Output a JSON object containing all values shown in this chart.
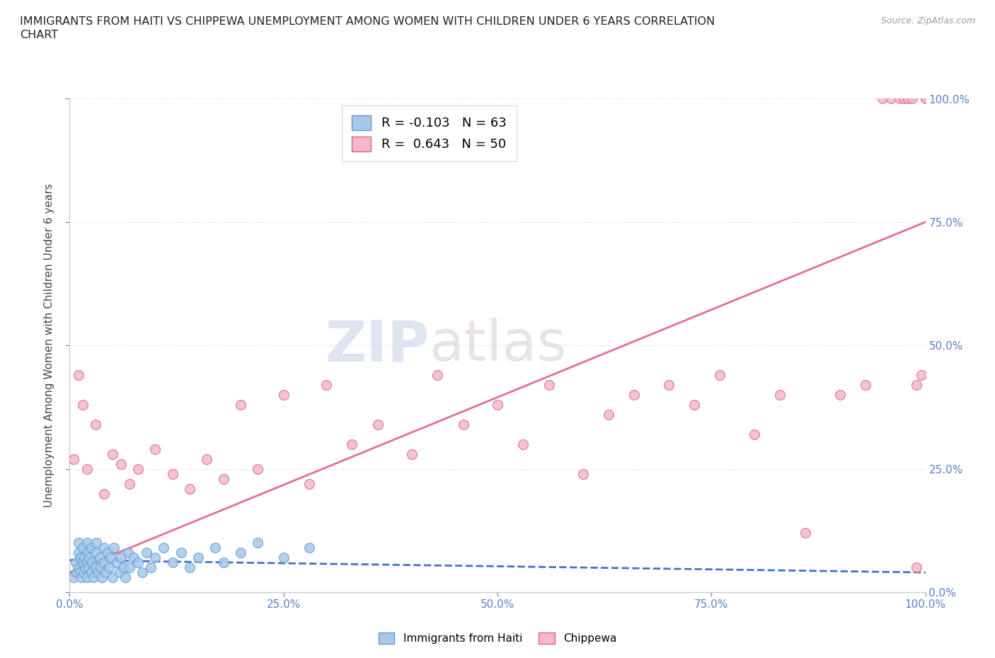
{
  "title_line1": "IMMIGRANTS FROM HAITI VS CHIPPEWA UNEMPLOYMENT AMONG WOMEN WITH CHILDREN UNDER 6 YEARS CORRELATION",
  "title_line2": "CHART",
  "source": "Source: ZipAtlas.com",
  "ylabel": "Unemployment Among Women with Children Under 6 years",
  "ytick_labels": [
    "0.0%",
    "25.0%",
    "50.0%",
    "75.0%",
    "100.0%"
  ],
  "ytick_values": [
    0,
    0.25,
    0.5,
    0.75,
    1.0
  ],
  "xtick_values": [
    0,
    0.25,
    0.5,
    0.75,
    1.0
  ],
  "xtick_labels": [
    "0.0%",
    "25.0%",
    "50.0%",
    "75.0%",
    "100.0%"
  ],
  "legend_haiti": "Immigrants from Haiti",
  "legend_chippewa": "Chippewa",
  "haiti_R": -0.103,
  "haiti_N": 63,
  "chippewa_R": 0.643,
  "chippewa_N": 50,
  "haiti_color": "#a8c8e8",
  "chippewa_color": "#f4b8c8",
  "haiti_edge_color": "#5b9bd5",
  "chippewa_edge_color": "#e06080",
  "haiti_line_color": "#4472c4",
  "chippewa_line_color": "#e07090",
  "watermark_color": "#dde4f0",
  "axis_color": "#cccccc",
  "tick_color": "#5b7fc5",
  "grid_color": "#e8e8e8",
  "background_color": "#ffffff",
  "haiti_scatter_x": [
    0.005,
    0.007,
    0.008,
    0.01,
    0.01,
    0.01,
    0.012,
    0.013,
    0.014,
    0.015,
    0.015,
    0.016,
    0.017,
    0.018,
    0.02,
    0.02,
    0.02,
    0.021,
    0.022,
    0.023,
    0.025,
    0.025,
    0.026,
    0.028,
    0.03,
    0.03,
    0.031,
    0.033,
    0.035,
    0.036,
    0.038,
    0.04,
    0.04,
    0.042,
    0.044,
    0.046,
    0.048,
    0.05,
    0.052,
    0.055,
    0.058,
    0.06,
    0.063,
    0.065,
    0.068,
    0.07,
    0.075,
    0.08,
    0.085,
    0.09,
    0.095,
    0.1,
    0.11,
    0.12,
    0.13,
    0.14,
    0.15,
    0.17,
    0.18,
    0.2,
    0.22,
    0.25,
    0.28
  ],
  "haiti_scatter_y": [
    0.03,
    0.06,
    0.04,
    0.08,
    0.05,
    0.1,
    0.04,
    0.07,
    0.03,
    0.09,
    0.06,
    0.04,
    0.07,
    0.05,
    0.1,
    0.06,
    0.03,
    0.08,
    0.05,
    0.07,
    0.04,
    0.09,
    0.06,
    0.03,
    0.08,
    0.05,
    0.1,
    0.04,
    0.07,
    0.05,
    0.03,
    0.09,
    0.06,
    0.04,
    0.08,
    0.05,
    0.07,
    0.03,
    0.09,
    0.06,
    0.04,
    0.07,
    0.05,
    0.03,
    0.08,
    0.05,
    0.07,
    0.06,
    0.04,
    0.08,
    0.05,
    0.07,
    0.09,
    0.06,
    0.08,
    0.05,
    0.07,
    0.09,
    0.06,
    0.08,
    0.1,
    0.07,
    0.09
  ],
  "chippewa_scatter_x": [
    0.005,
    0.01,
    0.015,
    0.02,
    0.03,
    0.04,
    0.05,
    0.06,
    0.07,
    0.08,
    0.1,
    0.12,
    0.14,
    0.16,
    0.18,
    0.2,
    0.22,
    0.25,
    0.28,
    0.3,
    0.33,
    0.36,
    0.4,
    0.43,
    0.46,
    0.5,
    0.53,
    0.56,
    0.6,
    0.63,
    0.66,
    0.7,
    0.73,
    0.76,
    0.8,
    0.83,
    0.86,
    0.9,
    0.93,
    0.95,
    0.96,
    0.97,
    0.975,
    0.98,
    0.985,
    0.99,
    0.995,
    1.0,
    1.0,
    0.99
  ],
  "chippewa_scatter_y": [
    0.27,
    0.44,
    0.38,
    0.25,
    0.34,
    0.2,
    0.28,
    0.26,
    0.22,
    0.25,
    0.29,
    0.24,
    0.21,
    0.27,
    0.23,
    0.38,
    0.25,
    0.4,
    0.22,
    0.42,
    0.3,
    0.34,
    0.28,
    0.44,
    0.34,
    0.38,
    0.3,
    0.42,
    0.24,
    0.36,
    0.4,
    0.42,
    0.38,
    0.44,
    0.32,
    0.4,
    0.12,
    0.4,
    0.42,
    1.0,
    1.0,
    1.0,
    1.0,
    1.0,
    1.0,
    0.42,
    0.44,
    1.0,
    1.0,
    0.05
  ],
  "chippewa_trendline_x0": 0.0,
  "chippewa_trendline_y0": 0.04,
  "chippewa_trendline_x1": 1.0,
  "chippewa_trendline_y1": 0.75,
  "haiti_trendline_x0": 0.0,
  "haiti_trendline_y0": 0.065,
  "haiti_trendline_x1": 1.0,
  "haiti_trendline_y1": 0.04
}
